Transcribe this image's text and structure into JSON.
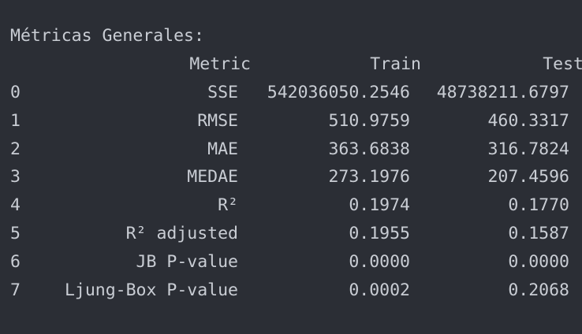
{
  "output": {
    "title": "Métricas Generales:",
    "headers": {
      "metric": "Metric",
      "train": "Train",
      "test": "Test"
    },
    "rows": [
      {
        "index": "0",
        "metric": "SSE",
        "train": "542036050.2546",
        "test": "48738211.6797"
      },
      {
        "index": "1",
        "metric": "RMSE",
        "train": "510.9759",
        "test": "460.3317"
      },
      {
        "index": "2",
        "metric": "MAE",
        "train": "363.6838",
        "test": "316.7824"
      },
      {
        "index": "3",
        "metric": "MEDAE",
        "train": "273.1976",
        "test": "207.4596"
      },
      {
        "index": "4",
        "metric": "R²",
        "train": "0.1974",
        "test": "0.1770"
      },
      {
        "index": "5",
        "metric": "R² adjusted",
        "train": "0.1955",
        "test": "0.1587"
      },
      {
        "index": "6",
        "metric": "JB P-value",
        "train": "0.0000",
        "test": "0.0000"
      },
      {
        "index": "7",
        "metric": "Ljung-Box P-value",
        "train": "0.0002",
        "test": "0.2068"
      }
    ]
  }
}
